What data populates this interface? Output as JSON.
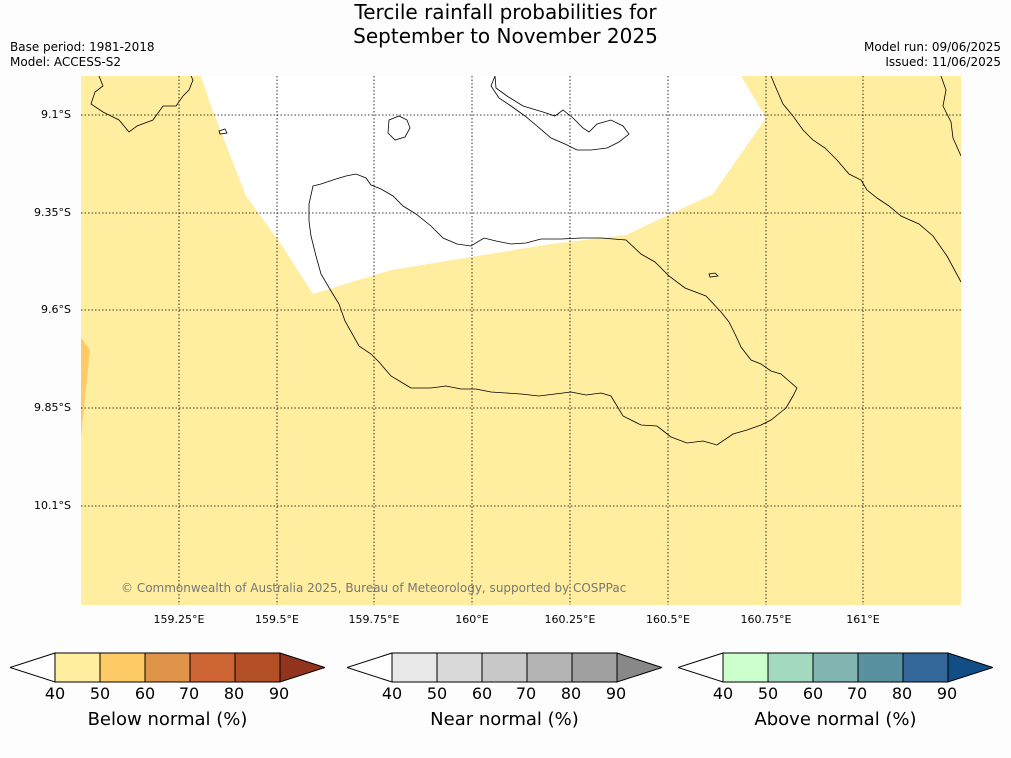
{
  "title_line1": "Tercile rainfall probabilities for",
  "title_line2": "September to November 2025",
  "base_period": "Base period: 1981-2018",
  "model": "Model: ACCESS-S2",
  "model_run": "Model run: 09/06/2025",
  "issued": "Issued: 11/06/2025",
  "copyright": "© Commonwealth of Australia 2025, Bureau of Meteorology, supported by COSPPac",
  "lat_ticks": [
    "9.1°S",
    "9.35°S",
    "9.6°S",
    "9.85°S",
    "10.1°S"
  ],
  "lon_ticks": [
    "159.25°E",
    "159.5°E",
    "159.75°E",
    "160°E",
    "160.25°E",
    "160.5°E",
    "160.75°E",
    "161°E"
  ],
  "legend_ticks": [
    "40",
    "50",
    "60",
    "70",
    "80",
    "90"
  ],
  "legends": [
    {
      "label": "Below normal (%)",
      "colors": [
        "#ffffff",
        "#ffeda0",
        "#fecb66",
        "#e0944a",
        "#cc6533",
        "#b24f27",
        "#92331d"
      ]
    },
    {
      "label": "Near normal (%)",
      "colors": [
        "#ffffff",
        "#e8e8e8",
        "#d9d9d9",
        "#c8c8c8",
        "#b4b4b4",
        "#a0a0a0",
        "#888888"
      ]
    },
    {
      "label": "Above normal (%)",
      "colors": [
        "#ffffff",
        "#ccffcc",
        "#a3d9bf",
        "#82b5b2",
        "#5a91a1",
        "#336699",
        "#124e86"
      ]
    }
  ],
  "colors": {
    "below_40_50": "#ffeda0",
    "below_50_60": "#fecb66",
    "background": "#ffffff"
  }
}
